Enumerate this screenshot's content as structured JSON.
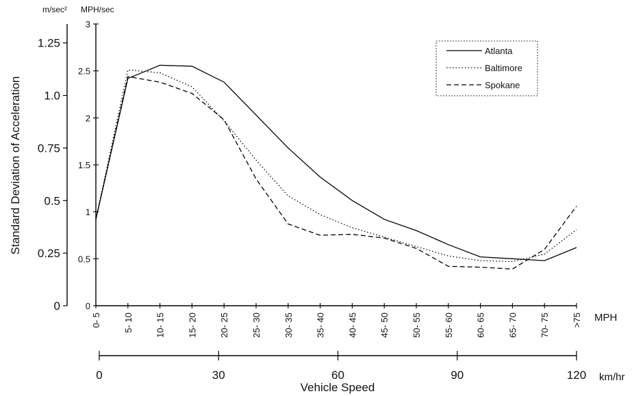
{
  "chart_data": {
    "type": "line",
    "title": "",
    "ylabel": "Standard Deviation of Acceleration",
    "xlabel": "Vehicle Speed",
    "y_units": {
      "left": "m/sec²",
      "right": "MPH/sec"
    },
    "x_units": {
      "mph": "MPH",
      "kmh": "km/hr"
    },
    "ylim_mph_sec": [
      0,
      3
    ],
    "ylim_m_sec2": [
      0,
      1.34
    ],
    "yticks_m_sec2": [
      "0",
      "0.25",
      "0.5",
      "0.75",
      "1.0",
      "1.25"
    ],
    "yticks_mph_sec": [
      "0",
      "0.5",
      "1",
      "1.5",
      "2",
      "2.5",
      "3"
    ],
    "categories": [
      "0- 5",
      "5- 10",
      "10- 15",
      "15- 20",
      "20- 25",
      "25- 30",
      "30- 35",
      "35- 40",
      "40- 45",
      "45- 50",
      "50- 55",
      "55- 60",
      "60- 65",
      "65- 70",
      "70- 75",
      ">75"
    ],
    "kmh_ticks": [
      "0",
      "30",
      "60",
      "90",
      "120"
    ],
    "legend_position": "top-right",
    "grid": false,
    "series": [
      {
        "name": "Atlanta",
        "style": "solid",
        "values": [
          0.92,
          2.42,
          2.56,
          2.55,
          2.38,
          2.03,
          1.68,
          1.37,
          1.12,
          0.92,
          0.8,
          0.65,
          0.52,
          0.5,
          0.48,
          0.62
        ]
      },
      {
        "name": "Baltimore",
        "style": "dotted",
        "values": [
          0.92,
          2.51,
          2.48,
          2.33,
          1.97,
          1.55,
          1.17,
          0.97,
          0.83,
          0.73,
          0.63,
          0.53,
          0.48,
          0.47,
          0.55,
          0.81
        ]
      },
      {
        "name": "Spokane",
        "style": "dashed",
        "values": [
          0.92,
          2.44,
          2.38,
          2.26,
          1.98,
          1.35,
          0.87,
          0.75,
          0.76,
          0.72,
          0.61,
          0.42,
          0.41,
          0.39,
          0.6,
          1.06
        ]
      }
    ]
  }
}
